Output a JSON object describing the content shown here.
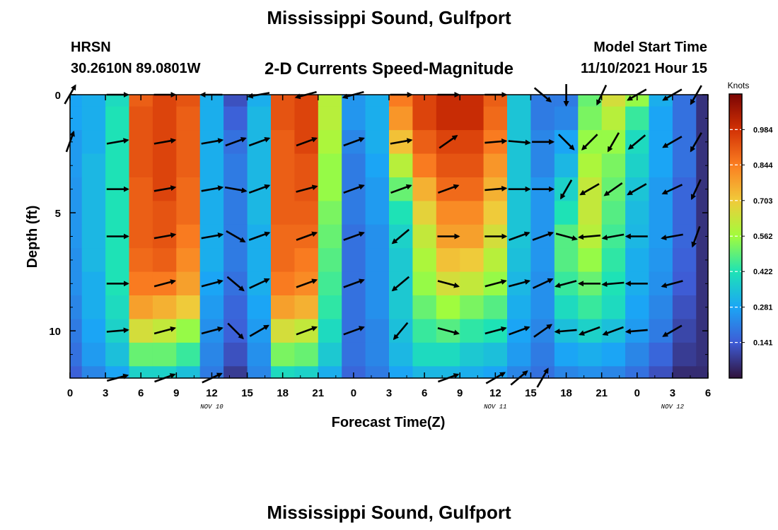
{
  "title": "Mississippi Sound, Gulfport",
  "station": "HRSN",
  "coords": "30.2610N  89.0801W",
  "subtitle": "2-D Currents Speed-Magnitude",
  "model_start_label": "Model Start Time",
  "model_start_value": "11/10/2021 Hour 15",
  "bottom_title": "Mississippi Sound, Gulfport",
  "chart_data": {
    "type": "heatmap",
    "xlabel": "Forecast Time(Z)",
    "ylabel": "Depth (ft)",
    "x_tick_labels": [
      "0",
      "3",
      "6",
      "9",
      "12",
      "15",
      "18",
      "21",
      "0",
      "3",
      "6",
      "9",
      "12",
      "15",
      "18",
      "21",
      "0",
      "3",
      "6"
    ],
    "x_ticks_hours": [
      0,
      3,
      6,
      9,
      12,
      15,
      18,
      21,
      24,
      27,
      30,
      33,
      36,
      39,
      42,
      45,
      48,
      51,
      54
    ],
    "xlim_hours": [
      0,
      54
    ],
    "date_labels": [
      {
        "hour": 12,
        "text": "NOV 10"
      },
      {
        "hour": 36,
        "text": "NOV 11"
      },
      {
        "hour": 51,
        "text": "NOV 12"
      }
    ],
    "y_tick_labels": [
      "0",
      "5",
      "10"
    ],
    "y_ticks": [
      0,
      5,
      10
    ],
    "ylim_ft": [
      0,
      12
    ],
    "y_inverted": true,
    "colorbar": {
      "title": "Knots",
      "ticks": [
        "0.984",
        "0.844",
        "0.703",
        "0.562",
        "0.422",
        "0.281",
        "0.141"
      ],
      "tick_values": [
        0.984,
        0.844,
        0.703,
        0.562,
        0.422,
        0.281,
        0.141
      ],
      "range": [
        0,
        1.125
      ],
      "colormap": [
        "#30123b",
        "#3e5cd6",
        "#1ba6f5",
        "#1ee3b5",
        "#a2fc3c",
        "#f1ca3a",
        "#fb7e21",
        "#d23105",
        "#7a0403"
      ]
    },
    "speed_grid": {
      "x_hours": [
        0,
        2,
        4,
        6,
        8,
        10,
        12,
        14,
        16,
        18,
        20,
        22,
        24,
        26,
        28,
        30,
        32,
        34,
        36,
        38,
        40,
        42,
        44,
        46,
        48,
        50,
        52,
        54
      ],
      "depth_ft": [
        0,
        1,
        2,
        3,
        4,
        5,
        6,
        7,
        8,
        9,
        10,
        11,
        12
      ],
      "values_knots": [
        [
          0.28,
          0.3,
          0.4,
          0.9,
          0.95,
          0.92,
          0.3,
          0.12,
          0.3,
          0.92,
          0.95,
          0.6,
          0.25,
          0.3,
          0.85,
          0.95,
          1.0,
          1.0,
          0.9,
          0.35,
          0.2,
          0.2,
          0.5,
          0.65,
          0.55,
          0.3,
          0.18,
          0.06
        ],
        [
          0.28,
          0.3,
          0.42,
          0.92,
          0.95,
          0.9,
          0.3,
          0.15,
          0.32,
          0.92,
          0.95,
          0.6,
          0.25,
          0.3,
          0.8,
          0.95,
          1.0,
          1.0,
          0.88,
          0.35,
          0.2,
          0.22,
          0.52,
          0.6,
          0.45,
          0.28,
          0.18,
          0.06
        ],
        [
          0.26,
          0.3,
          0.42,
          0.92,
          0.95,
          0.9,
          0.3,
          0.18,
          0.32,
          0.9,
          0.95,
          0.58,
          0.22,
          0.3,
          0.72,
          0.9,
          0.95,
          0.95,
          0.85,
          0.35,
          0.22,
          0.28,
          0.55,
          0.55,
          0.4,
          0.28,
          0.18,
          0.06
        ],
        [
          0.26,
          0.32,
          0.42,
          0.92,
          0.95,
          0.9,
          0.3,
          0.2,
          0.32,
          0.9,
          0.92,
          0.55,
          0.2,
          0.28,
          0.6,
          0.85,
          0.92,
          0.92,
          0.8,
          0.35,
          0.22,
          0.32,
          0.58,
          0.52,
          0.38,
          0.28,
          0.18,
          0.06
        ],
        [
          0.25,
          0.32,
          0.42,
          0.9,
          0.95,
          0.88,
          0.3,
          0.2,
          0.32,
          0.9,
          0.92,
          0.55,
          0.2,
          0.26,
          0.5,
          0.75,
          0.88,
          0.88,
          0.75,
          0.35,
          0.25,
          0.38,
          0.62,
          0.5,
          0.35,
          0.26,
          0.16,
          0.06
        ],
        [
          0.25,
          0.32,
          0.42,
          0.9,
          0.92,
          0.88,
          0.3,
          0.2,
          0.32,
          0.9,
          0.9,
          0.52,
          0.2,
          0.26,
          0.42,
          0.68,
          0.82,
          0.82,
          0.7,
          0.35,
          0.25,
          0.42,
          0.62,
          0.48,
          0.33,
          0.26,
          0.16,
          0.06
        ],
        [
          0.25,
          0.32,
          0.42,
          0.9,
          0.92,
          0.85,
          0.3,
          0.2,
          0.3,
          0.88,
          0.88,
          0.5,
          0.18,
          0.24,
          0.38,
          0.62,
          0.78,
          0.78,
          0.65,
          0.35,
          0.25,
          0.48,
          0.6,
          0.46,
          0.32,
          0.26,
          0.16,
          0.06
        ],
        [
          0.24,
          0.32,
          0.42,
          0.88,
          0.9,
          0.82,
          0.3,
          0.2,
          0.3,
          0.88,
          0.85,
          0.48,
          0.18,
          0.24,
          0.36,
          0.58,
          0.72,
          0.7,
          0.6,
          0.34,
          0.25,
          0.48,
          0.55,
          0.44,
          0.3,
          0.25,
          0.15,
          0.06
        ],
        [
          0.24,
          0.3,
          0.42,
          0.85,
          0.85,
          0.78,
          0.28,
          0.18,
          0.3,
          0.85,
          0.82,
          0.46,
          0.18,
          0.24,
          0.36,
          0.55,
          0.65,
          0.62,
          0.55,
          0.32,
          0.24,
          0.45,
          0.5,
          0.42,
          0.3,
          0.24,
          0.14,
          0.06
        ],
        [
          0.22,
          0.3,
          0.4,
          0.78,
          0.75,
          0.7,
          0.26,
          0.16,
          0.28,
          0.78,
          0.75,
          0.44,
          0.18,
          0.24,
          0.36,
          0.5,
          0.56,
          0.52,
          0.48,
          0.3,
          0.24,
          0.4,
          0.45,
          0.4,
          0.28,
          0.22,
          0.12,
          0.06
        ],
        [
          0.2,
          0.28,
          0.38,
          0.65,
          0.62,
          0.55,
          0.24,
          0.15,
          0.26,
          0.65,
          0.62,
          0.4,
          0.18,
          0.22,
          0.34,
          0.45,
          0.48,
          0.44,
          0.42,
          0.28,
          0.22,
          0.34,
          0.38,
          0.34,
          0.26,
          0.2,
          0.1,
          0.06
        ],
        [
          0.18,
          0.26,
          0.34,
          0.5,
          0.5,
          0.45,
          0.22,
          0.12,
          0.24,
          0.52,
          0.5,
          0.36,
          0.18,
          0.22,
          0.32,
          0.4,
          0.4,
          0.36,
          0.34,
          0.26,
          0.2,
          0.28,
          0.3,
          0.28,
          0.22,
          0.16,
          0.08,
          0.06
        ],
        [
          0.15,
          0.22,
          0.28,
          0.38,
          0.38,
          0.34,
          0.2,
          0.08,
          0.22,
          0.4,
          0.38,
          0.3,
          0.16,
          0.2,
          0.28,
          0.32,
          0.32,
          0.3,
          0.28,
          0.22,
          0.18,
          0.22,
          0.24,
          0.22,
          0.18,
          0.12,
          0.05,
          0.05
        ]
      ]
    },
    "direction_arrows": [
      {
        "x": 0,
        "d": 0,
        "ang": -60
      },
      {
        "x": 4,
        "d": 0,
        "ang": 0
      },
      {
        "x": 8,
        "d": 0,
        "ang": 0
      },
      {
        "x": 12,
        "d": 0,
        "ang": 180
      },
      {
        "x": 16,
        "d": 0,
        "ang": 170
      },
      {
        "x": 20,
        "d": 0,
        "ang": 165
      },
      {
        "x": 24,
        "d": 0,
        "ang": 165
      },
      {
        "x": 28,
        "d": 0,
        "ang": 0
      },
      {
        "x": 32,
        "d": 0,
        "ang": 0
      },
      {
        "x": 36,
        "d": 0,
        "ang": 0
      },
      {
        "x": 40,
        "d": 0,
        "ang": 40
      },
      {
        "x": 42,
        "d": 0,
        "ang": 90
      },
      {
        "x": 45,
        "d": 0,
        "ang": 115
      },
      {
        "x": 48,
        "d": 0,
        "ang": 150
      },
      {
        "x": 51,
        "d": 0,
        "ang": 150
      },
      {
        "x": 53,
        "d": 0,
        "ang": 120
      },
      {
        "x": 0,
        "d": 2,
        "ang": -70
      },
      {
        "x": 4,
        "d": 2,
        "ang": -10
      },
      {
        "x": 8,
        "d": 2,
        "ang": -10
      },
      {
        "x": 12,
        "d": 2,
        "ang": -10
      },
      {
        "x": 14,
        "d": 2,
        "ang": -20
      },
      {
        "x": 16,
        "d": 2,
        "ang": -20
      },
      {
        "x": 20,
        "d": 2,
        "ang": -20
      },
      {
        "x": 24,
        "d": 2,
        "ang": -20
      },
      {
        "x": 28,
        "d": 2,
        "ang": -10
      },
      {
        "x": 32,
        "d": 2,
        "ang": -35
      },
      {
        "x": 36,
        "d": 2,
        "ang": -5
      },
      {
        "x": 38,
        "d": 2,
        "ang": 5
      },
      {
        "x": 40,
        "d": 2,
        "ang": 0
      },
      {
        "x": 42,
        "d": 2,
        "ang": 45
      },
      {
        "x": 44,
        "d": 2,
        "ang": 135
      },
      {
        "x": 46,
        "d": 2,
        "ang": 120
      },
      {
        "x": 48,
        "d": 2,
        "ang": 140
      },
      {
        "x": 51,
        "d": 2,
        "ang": 150
      },
      {
        "x": 53,
        "d": 2,
        "ang": 120
      },
      {
        "x": 4,
        "d": 4,
        "ang": 0
      },
      {
        "x": 8,
        "d": 4,
        "ang": -10
      },
      {
        "x": 12,
        "d": 4,
        "ang": -10
      },
      {
        "x": 14,
        "d": 4,
        "ang": 10
      },
      {
        "x": 16,
        "d": 4,
        "ang": -20
      },
      {
        "x": 20,
        "d": 4,
        "ang": -15
      },
      {
        "x": 24,
        "d": 4,
        "ang": -20
      },
      {
        "x": 28,
        "d": 4,
        "ang": -20
      },
      {
        "x": 32,
        "d": 4,
        "ang": -20
      },
      {
        "x": 36,
        "d": 4,
        "ang": -5
      },
      {
        "x": 38,
        "d": 4,
        "ang": 0
      },
      {
        "x": 40,
        "d": 4,
        "ang": 0
      },
      {
        "x": 42,
        "d": 4,
        "ang": 120
      },
      {
        "x": 44,
        "d": 4,
        "ang": 150
      },
      {
        "x": 46,
        "d": 4,
        "ang": 145
      },
      {
        "x": 48,
        "d": 4,
        "ang": 150
      },
      {
        "x": 51,
        "d": 4,
        "ang": 155
      },
      {
        "x": 53,
        "d": 4,
        "ang": 115
      },
      {
        "x": 4,
        "d": 6,
        "ang": 0
      },
      {
        "x": 8,
        "d": 6,
        "ang": -10
      },
      {
        "x": 12,
        "d": 6,
        "ang": -10
      },
      {
        "x": 14,
        "d": 6,
        "ang": 30
      },
      {
        "x": 16,
        "d": 6,
        "ang": -20
      },
      {
        "x": 20,
        "d": 6,
        "ang": -20
      },
      {
        "x": 24,
        "d": 6,
        "ang": -20
      },
      {
        "x": 28,
        "d": 6,
        "ang": 140
      },
      {
        "x": 32,
        "d": 6,
        "ang": 0
      },
      {
        "x": 36,
        "d": 6,
        "ang": 0
      },
      {
        "x": 38,
        "d": 6,
        "ang": -20
      },
      {
        "x": 40,
        "d": 6,
        "ang": -20
      },
      {
        "x": 42,
        "d": 6,
        "ang": 15
      },
      {
        "x": 44,
        "d": 6,
        "ang": 175
      },
      {
        "x": 46,
        "d": 6,
        "ang": 170
      },
      {
        "x": 48,
        "d": 6,
        "ang": 180
      },
      {
        "x": 51,
        "d": 6,
        "ang": 170
      },
      {
        "x": 53,
        "d": 6,
        "ang": 110
      },
      {
        "x": 4,
        "d": 8,
        "ang": 0
      },
      {
        "x": 8,
        "d": 8,
        "ang": -15
      },
      {
        "x": 12,
        "d": 8,
        "ang": -15
      },
      {
        "x": 14,
        "d": 8,
        "ang": 40
      },
      {
        "x": 16,
        "d": 8,
        "ang": -25
      },
      {
        "x": 20,
        "d": 8,
        "ang": -20
      },
      {
        "x": 24,
        "d": 8,
        "ang": -20
      },
      {
        "x": 28,
        "d": 8,
        "ang": 140
      },
      {
        "x": 32,
        "d": 8,
        "ang": 15
      },
      {
        "x": 36,
        "d": 8,
        "ang": -15
      },
      {
        "x": 38,
        "d": 8,
        "ang": -15
      },
      {
        "x": 40,
        "d": 8,
        "ang": -25
      },
      {
        "x": 42,
        "d": 8,
        "ang": 165
      },
      {
        "x": 44,
        "d": 8,
        "ang": 180
      },
      {
        "x": 46,
        "d": 8,
        "ang": 175
      },
      {
        "x": 48,
        "d": 8,
        "ang": 180
      },
      {
        "x": 51,
        "d": 8,
        "ang": 165
      },
      {
        "x": 4,
        "d": 10,
        "ang": -5
      },
      {
        "x": 8,
        "d": 10,
        "ang": -15
      },
      {
        "x": 12,
        "d": 10,
        "ang": -15
      },
      {
        "x": 14,
        "d": 10,
        "ang": 45
      },
      {
        "x": 16,
        "d": 10,
        "ang": -30
      },
      {
        "x": 20,
        "d": 10,
        "ang": -20
      },
      {
        "x": 24,
        "d": 10,
        "ang": -20
      },
      {
        "x": 28,
        "d": 10,
        "ang": 130
      },
      {
        "x": 32,
        "d": 10,
        "ang": 15
      },
      {
        "x": 36,
        "d": 10,
        "ang": -15
      },
      {
        "x": 38,
        "d": 10,
        "ang": -20
      },
      {
        "x": 40,
        "d": 10,
        "ang": -35
      },
      {
        "x": 42,
        "d": 10,
        "ang": 175
      },
      {
        "x": 44,
        "d": 10,
        "ang": 160
      },
      {
        "x": 46,
        "d": 10,
        "ang": 160
      },
      {
        "x": 48,
        "d": 10,
        "ang": 175
      },
      {
        "x": 51,
        "d": 10,
        "ang": 150
      },
      {
        "x": 4,
        "d": 12,
        "ang": -15
      },
      {
        "x": 8,
        "d": 12,
        "ang": -20
      },
      {
        "x": 12,
        "d": 12,
        "ang": -25
      },
      {
        "x": 32,
        "d": 12,
        "ang": -20
      },
      {
        "x": 36,
        "d": 12,
        "ang": -30
      },
      {
        "x": 38,
        "d": 12,
        "ang": -40
      },
      {
        "x": 40,
        "d": 12,
        "ang": -60
      }
    ]
  }
}
